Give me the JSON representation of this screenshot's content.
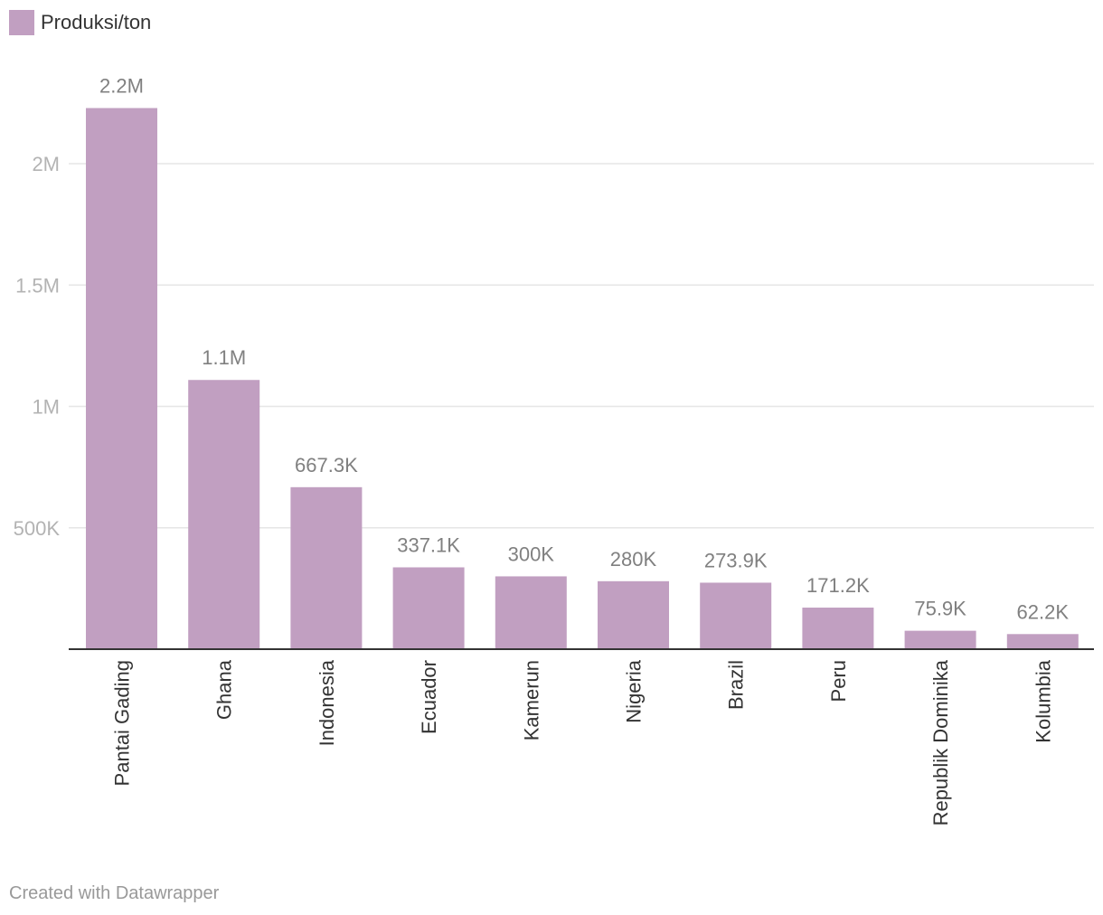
{
  "chart_data": {
    "type": "bar",
    "legend": {
      "label": "Produksi/ton",
      "color": "#c19fc1",
      "placement": "top-left"
    },
    "categories": [
      "Pantai Gading",
      "Ghana",
      "Indonesia",
      "Ecuador",
      "Kamerun",
      "Nigeria",
      "Brazil",
      "Peru",
      "Republik Dominika",
      "Kolumbia"
    ],
    "series": [
      {
        "name": "Produksi/ton",
        "color": "#c19fc1",
        "values": [
          2229000,
          1109000,
          667300,
          337100,
          300000,
          280000,
          273900,
          171200,
          75900,
          62200
        ],
        "labels": [
          "2.2M",
          "1.1M",
          "667.3K",
          "337.1K",
          "300K",
          "280K",
          "273.9K",
          "171.2K",
          "75.9K",
          "62.2K"
        ]
      }
    ],
    "y_ticks": [
      {
        "value": 500000,
        "label": "500K"
      },
      {
        "value": 1000000,
        "label": "1M"
      },
      {
        "value": 1500000,
        "label": "1.5M"
      },
      {
        "value": 2000000,
        "label": "2M"
      }
    ],
    "ylim": [
      0,
      2250000
    ],
    "grid": true
  },
  "footer": {
    "credit": "Created with Datawrapper"
  }
}
